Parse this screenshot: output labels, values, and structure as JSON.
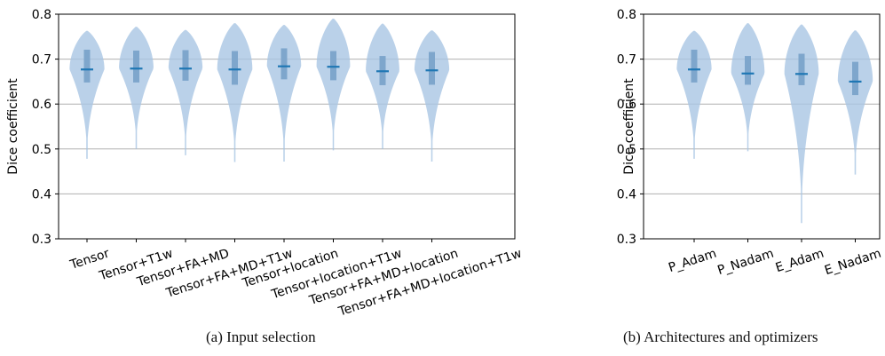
{
  "captions": {
    "a": "(a)  Input selection",
    "b": "(b)  Architectures and optimizers"
  },
  "colors": {
    "violin_fill": "#a9c6e3",
    "iqr_bar": "#7ea6cc",
    "median_line": "#1f77b4",
    "grid": "#b0b0b0",
    "axis": "#000000"
  },
  "chart_data": [
    {
      "type": "violin",
      "panel": "a",
      "ylabel": "Dice coefficient",
      "xlabel": "",
      "ylim": [
        0.3,
        0.8
      ],
      "yticks": [
        0.3,
        0.4,
        0.5,
        0.6,
        0.7,
        0.8
      ],
      "ytick_labels": [
        "0.3",
        "0.4",
        "0.5",
        "0.6",
        "0.7",
        "0.8"
      ],
      "grid": "horizontal",
      "categories": [
        "Tensor",
        "Tensor+T1w",
        "Tensor+FA+MD",
        "Tensor+FA+MD+T1w",
        "Tensor+location",
        "Tensor+location+T1w",
        "Tensor+FA+MD+location",
        "Tensor+FA+MD+location+T1w"
      ],
      "median": [
        0.677,
        0.679,
        0.679,
        0.677,
        0.684,
        0.683,
        0.673,
        0.675
      ],
      "q1": [
        0.648,
        0.648,
        0.652,
        0.643,
        0.655,
        0.653,
        0.642,
        0.643
      ],
      "q3": [
        0.721,
        0.719,
        0.72,
        0.718,
        0.724,
        0.718,
        0.707,
        0.716
      ],
      "min": [
        0.478,
        0.5,
        0.486,
        0.471,
        0.472,
        0.497,
        0.5,
        0.472
      ],
      "max": [
        0.763,
        0.772,
        0.765,
        0.78,
        0.776,
        0.79,
        0.779,
        0.764
      ]
    },
    {
      "type": "violin",
      "panel": "b",
      "ylabel": "Dice coefficient",
      "xlabel": "",
      "ylim": [
        0.3,
        0.8
      ],
      "yticks": [
        0.3,
        0.4,
        0.5,
        0.6,
        0.7,
        0.8
      ],
      "ytick_labels": [
        "0.3",
        "0.4",
        "0.5",
        "0.6",
        "0.7",
        "0.8"
      ],
      "grid": "horizontal",
      "categories": [
        "P_Adam",
        "P_Nadam",
        "E_Adam",
        "E_Nadam"
      ],
      "median": [
        0.677,
        0.668,
        0.667,
        0.65
      ],
      "q1": [
        0.648,
        0.643,
        0.642,
        0.62
      ],
      "q3": [
        0.721,
        0.707,
        0.712,
        0.694
      ],
      "min": [
        0.478,
        0.495,
        0.335,
        0.443
      ],
      "max": [
        0.763,
        0.78,
        0.777,
        0.764
      ]
    }
  ]
}
